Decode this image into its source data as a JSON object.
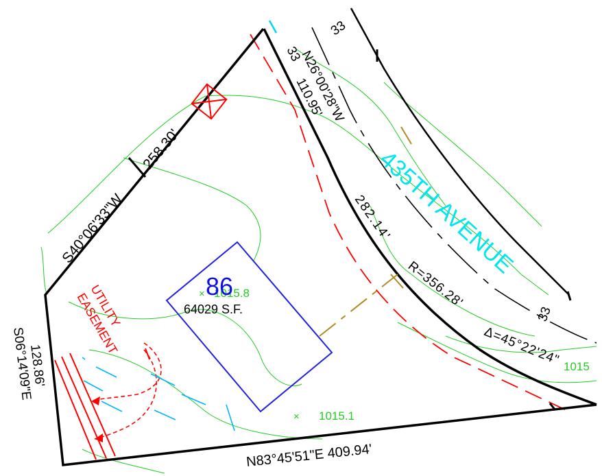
{
  "lot": {
    "number": "86",
    "area": "64029 S.F."
  },
  "boundary_labels": {
    "west_bearing": "S40°06'33\"W",
    "west_distance": "258.30'",
    "southwest_bearing": "S06°14'09\"E",
    "southwest_distance": "128.86'",
    "south_bearing_distance": "N83°45'51\"E 409.94'"
  },
  "road": {
    "name": "435TH AVENUE",
    "halfwidth_labels": [
      "33",
      "33",
      "33"
    ],
    "tangent_bearing": "N26°00'28\"W",
    "tangent_distance": "110.95'",
    "arc_length": "282.14'",
    "radius": "R=356.28'",
    "delta": "Δ=45°22'24\""
  },
  "easement": {
    "line1": "UTILITY",
    "line2": "EASEMENT"
  },
  "elevations": [
    "1015.8",
    "1015.1",
    "1015"
  ],
  "colors": {
    "boundary": "#000000",
    "lot_number": "#1010e0",
    "house": "#2020e0",
    "road_name": "#00e5f0",
    "easement": "#ff0000",
    "contour": "#22cc22",
    "setback": "#b08a20"
  }
}
